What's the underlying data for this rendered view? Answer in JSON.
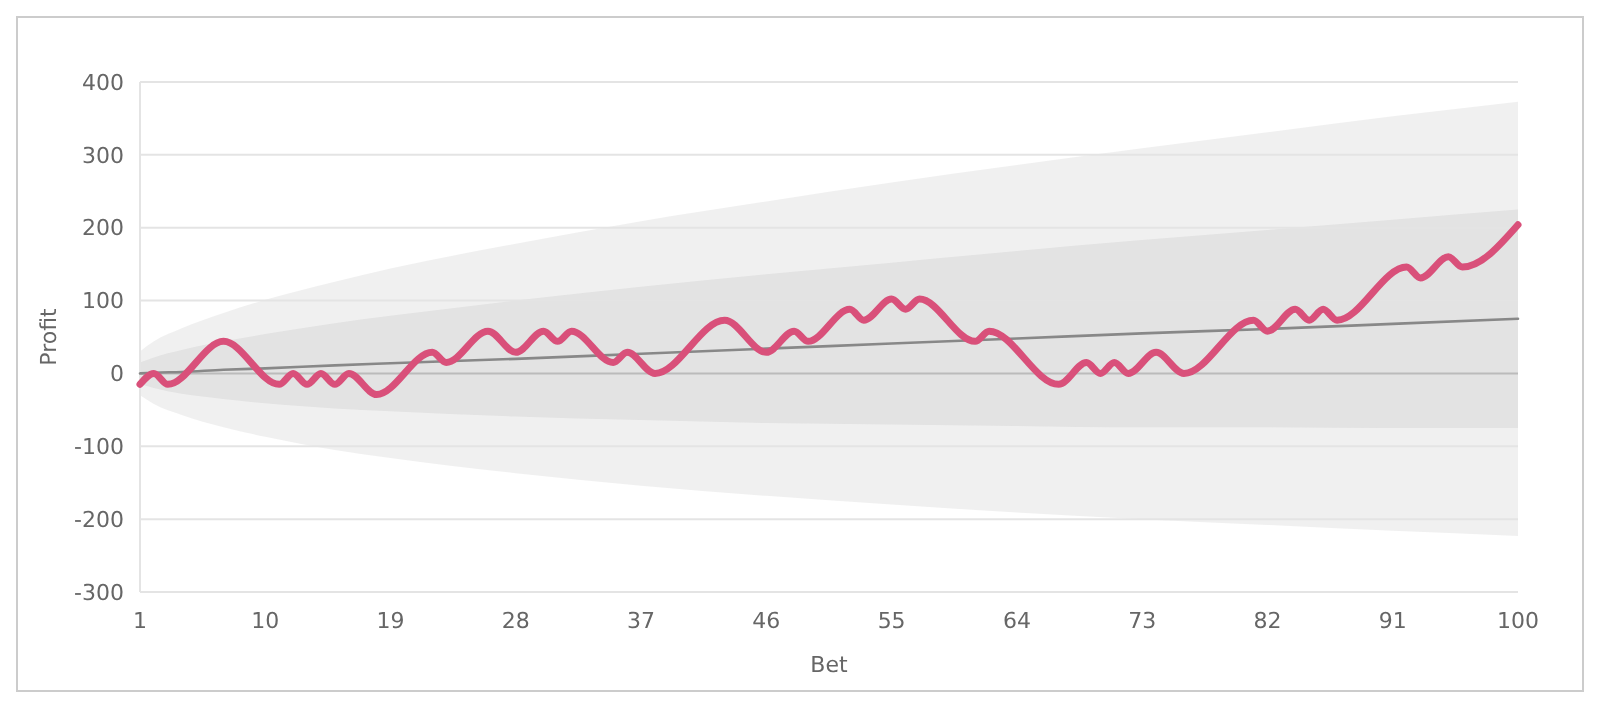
{
  "chart_data": {
    "type": "line",
    "xlabel": "Bet",
    "ylabel": "Profit",
    "xlim": [
      1,
      100
    ],
    "ylim": [
      -300,
      400
    ],
    "xticks": [
      1,
      10,
      19,
      28,
      37,
      46,
      55,
      64,
      73,
      82,
      91,
      100
    ],
    "yticks": [
      -300,
      -200,
      -100,
      0,
      100,
      200,
      300,
      400
    ],
    "grid": "y",
    "ref_lines": [
      {
        "axis": "y",
        "value": 0,
        "color": "#bbbbbb"
      }
    ],
    "series": [
      {
        "color": "#888888",
        "x": [
          1,
          2,
          4,
          7,
          10,
          15,
          19,
          28,
          37,
          46,
          55,
          64,
          73,
          82,
          91,
          100
        ],
        "values": [
          0,
          1,
          2,
          5,
          7,
          11,
          14,
          20,
          27,
          34,
          41,
          48,
          55,
          61,
          68,
          75
        ],
        "upper": [
          30,
          44,
          62,
          83,
          101,
          126,
          144,
          178,
          209,
          236,
          262,
          286,
          309,
          331,
          353,
          373
        ],
        "lower": [
          -30,
          -42,
          -57,
          -74,
          -87,
          -105,
          -116,
          -137,
          -154,
          -168,
          -180,
          -191,
          -200,
          -208,
          -216,
          -223
        ]
      },
      {
        "color": "#888888",
        "x": [
          1,
          2,
          4,
          7,
          10,
          15,
          19,
          28,
          37,
          46,
          55,
          64,
          73,
          82,
          91,
          100
        ],
        "values": [
          null,
          null,
          null,
          null,
          null,
          null,
          null,
          null,
          null,
          null,
          null,
          null,
          null,
          null,
          null,
          null
        ],
        "upper": [
          15,
          22,
          32,
          44,
          54,
          69,
          79,
          100,
          119,
          136,
          152,
          168,
          183,
          197,
          211,
          225
        ],
        "lower": [
          -15,
          -20,
          -28,
          -35,
          -41,
          -48,
          -52,
          -59,
          -64,
          -68,
          -70,
          -72,
          -74,
          -74,
          -75,
          -75
        ]
      },
      {
        "color": "#d9507a",
        "x": [
          1,
          2,
          3,
          7,
          11,
          12,
          13,
          14,
          15,
          16,
          18,
          22,
          23,
          26,
          28,
          30,
          31,
          32,
          35,
          36,
          38,
          43,
          46,
          48,
          49,
          52,
          53,
          55,
          56,
          57,
          61,
          62,
          67,
          69,
          70,
          71,
          72,
          74,
          76,
          81,
          82,
          84,
          85,
          86,
          87,
          92,
          93,
          95,
          96,
          100
        ],
        "values": [
          -15,
          0,
          -15,
          44,
          -15,
          0,
          -15,
          0,
          -15,
          0,
          -29,
          29,
          15,
          58,
          29,
          58,
          44,
          58,
          15,
          29,
          0,
          73,
          29,
          58,
          44,
          88,
          73,
          102,
          88,
          102,
          44,
          58,
          -15,
          15,
          0,
          15,
          0,
          29,
          0,
          73,
          58,
          88,
          73,
          88,
          73,
          146,
          131,
          160,
          146,
          204
        ]
      }
    ]
  }
}
